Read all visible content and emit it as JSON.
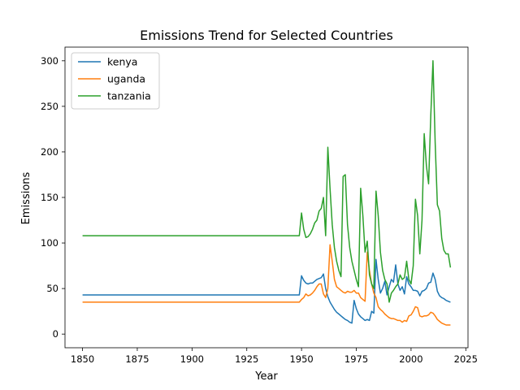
{
  "chart_data": {
    "type": "line",
    "title": "Emissions Trend for Selected Countries",
    "xlabel": "Year",
    "ylabel": "Emissions",
    "xlim": [
      1842,
      2026
    ],
    "ylim": [
      -15,
      315
    ],
    "xticks": [
      1850,
      1875,
      1900,
      1925,
      1950,
      1975,
      2000,
      2025
    ],
    "yticks": [
      0,
      50,
      100,
      150,
      200,
      250,
      300
    ],
    "grid": false,
    "legend_position": "upper-left",
    "series": [
      {
        "name": "kenya",
        "color": "#1f77b4",
        "points": [
          [
            1850,
            43
          ],
          [
            1949,
            43
          ],
          [
            1950,
            64
          ],
          [
            1951,
            59
          ],
          [
            1952,
            56
          ],
          [
            1953,
            55
          ],
          [
            1954,
            56
          ],
          [
            1955,
            56
          ],
          [
            1956,
            58
          ],
          [
            1957,
            60
          ],
          [
            1958,
            61
          ],
          [
            1959,
            62
          ],
          [
            1960,
            66
          ],
          [
            1961,
            50
          ],
          [
            1962,
            41
          ],
          [
            1963,
            35
          ],
          [
            1964,
            31
          ],
          [
            1965,
            27
          ],
          [
            1966,
            24
          ],
          [
            1967,
            22
          ],
          [
            1968,
            20
          ],
          [
            1969,
            18
          ],
          [
            1970,
            16
          ],
          [
            1971,
            15
          ],
          [
            1972,
            13
          ],
          [
            1973,
            12
          ],
          [
            1974,
            37
          ],
          [
            1975,
            28
          ],
          [
            1976,
            22
          ],
          [
            1977,
            19
          ],
          [
            1978,
            17
          ],
          [
            1979,
            15
          ],
          [
            1980,
            16
          ],
          [
            1981,
            15
          ],
          [
            1982,
            25
          ],
          [
            1983,
            23
          ],
          [
            1984,
            82
          ],
          [
            1985,
            60
          ],
          [
            1986,
            45
          ],
          [
            1987,
            50
          ],
          [
            1988,
            58
          ],
          [
            1989,
            43
          ],
          [
            1990,
            52
          ],
          [
            1991,
            60
          ],
          [
            1992,
            57
          ],
          [
            1993,
            76
          ],
          [
            1994,
            55
          ],
          [
            1995,
            48
          ],
          [
            1996,
            52
          ],
          [
            1997,
            44
          ],
          [
            1998,
            63
          ],
          [
            1999,
            55
          ],
          [
            2000,
            52
          ],
          [
            2001,
            48
          ],
          [
            2002,
            48
          ],
          [
            2003,
            47
          ],
          [
            2004,
            42
          ],
          [
            2005,
            47
          ],
          [
            2006,
            48
          ],
          [
            2007,
            50
          ],
          [
            2008,
            56
          ],
          [
            2009,
            57
          ],
          [
            2010,
            67
          ],
          [
            2011,
            60
          ],
          [
            2012,
            47
          ],
          [
            2013,
            42
          ],
          [
            2014,
            40
          ],
          [
            2015,
            39
          ],
          [
            2016,
            37
          ],
          [
            2017,
            36
          ],
          [
            2018,
            35
          ]
        ]
      },
      {
        "name": "uganda",
        "color": "#ff7f0e",
        "points": [
          [
            1850,
            35
          ],
          [
            1949,
            35
          ],
          [
            1950,
            38
          ],
          [
            1951,
            40
          ],
          [
            1952,
            44
          ],
          [
            1953,
            42
          ],
          [
            1954,
            43
          ],
          [
            1955,
            45
          ],
          [
            1956,
            48
          ],
          [
            1957,
            52
          ],
          [
            1958,
            55
          ],
          [
            1959,
            55
          ],
          [
            1960,
            44
          ],
          [
            1961,
            40
          ],
          [
            1962,
            50
          ],
          [
            1963,
            98
          ],
          [
            1964,
            80
          ],
          [
            1965,
            60
          ],
          [
            1966,
            52
          ],
          [
            1967,
            50
          ],
          [
            1968,
            48
          ],
          [
            1969,
            46
          ],
          [
            1970,
            45
          ],
          [
            1971,
            47
          ],
          [
            1972,
            46
          ],
          [
            1973,
            46
          ],
          [
            1974,
            48
          ],
          [
            1975,
            45
          ],
          [
            1976,
            45
          ],
          [
            1977,
            40
          ],
          [
            1978,
            38
          ],
          [
            1979,
            36
          ],
          [
            1980,
            90
          ],
          [
            1981,
            70
          ],
          [
            1982,
            55
          ],
          [
            1983,
            45
          ],
          [
            1984,
            40
          ],
          [
            1985,
            30
          ],
          [
            1986,
            27
          ],
          [
            1987,
            25
          ],
          [
            1988,
            22
          ],
          [
            1989,
            20
          ],
          [
            1990,
            18
          ],
          [
            1991,
            17
          ],
          [
            1992,
            17
          ],
          [
            1993,
            16
          ],
          [
            1994,
            15
          ],
          [
            1995,
            15
          ],
          [
            1996,
            13
          ],
          [
            1997,
            15
          ],
          [
            1998,
            14
          ],
          [
            1999,
            20
          ],
          [
            2000,
            21
          ],
          [
            2001,
            25
          ],
          [
            2002,
            30
          ],
          [
            2003,
            29
          ],
          [
            2004,
            20
          ],
          [
            2005,
            19
          ],
          [
            2006,
            20
          ],
          [
            2007,
            20
          ],
          [
            2008,
            21
          ],
          [
            2009,
            24
          ],
          [
            2010,
            23
          ],
          [
            2011,
            20
          ],
          [
            2012,
            16
          ],
          [
            2013,
            14
          ],
          [
            2014,
            12
          ],
          [
            2015,
            11
          ],
          [
            2016,
            10
          ],
          [
            2017,
            10
          ],
          [
            2018,
            10
          ]
        ]
      },
      {
        "name": "tanzania",
        "color": "#2ca02c",
        "points": [
          [
            1850,
            108
          ],
          [
            1949,
            108
          ],
          [
            1950,
            133
          ],
          [
            1951,
            115
          ],
          [
            1952,
            106
          ],
          [
            1953,
            107
          ],
          [
            1954,
            110
          ],
          [
            1955,
            115
          ],
          [
            1956,
            122
          ],
          [
            1957,
            125
          ],
          [
            1958,
            135
          ],
          [
            1959,
            138
          ],
          [
            1960,
            150
          ],
          [
            1961,
            108
          ],
          [
            1962,
            205
          ],
          [
            1963,
            160
          ],
          [
            1964,
            120
          ],
          [
            1965,
            95
          ],
          [
            1966,
            80
          ],
          [
            1967,
            70
          ],
          [
            1968,
            63
          ],
          [
            1969,
            173
          ],
          [
            1970,
            175
          ],
          [
            1971,
            120
          ],
          [
            1972,
            95
          ],
          [
            1973,
            80
          ],
          [
            1974,
            70
          ],
          [
            1975,
            60
          ],
          [
            1976,
            52
          ],
          [
            1977,
            160
          ],
          [
            1978,
            130
          ],
          [
            1979,
            90
          ],
          [
            1980,
            102
          ],
          [
            1981,
            65
          ],
          [
            1982,
            55
          ],
          [
            1983,
            50
          ],
          [
            1984,
            157
          ],
          [
            1985,
            130
          ],
          [
            1986,
            90
          ],
          [
            1987,
            70
          ],
          [
            1988,
            60
          ],
          [
            1989,
            55
          ],
          [
            1990,
            35
          ],
          [
            1991,
            45
          ],
          [
            1992,
            48
          ],
          [
            1993,
            52
          ],
          [
            1994,
            55
          ],
          [
            1995,
            65
          ],
          [
            1996,
            60
          ],
          [
            1997,
            62
          ],
          [
            1998,
            80
          ],
          [
            1999,
            60
          ],
          [
            2000,
            55
          ],
          [
            2001,
            75
          ],
          [
            2002,
            148
          ],
          [
            2003,
            130
          ],
          [
            2004,
            88
          ],
          [
            2005,
            125
          ],
          [
            2006,
            220
          ],
          [
            2007,
            185
          ],
          [
            2008,
            165
          ],
          [
            2009,
            240
          ],
          [
            2010,
            300
          ],
          [
            2011,
            210
          ],
          [
            2012,
            142
          ],
          [
            2013,
            135
          ],
          [
            2014,
            105
          ],
          [
            2015,
            92
          ],
          [
            2016,
            88
          ],
          [
            2017,
            88
          ],
          [
            2018,
            73
          ]
        ]
      }
    ]
  }
}
